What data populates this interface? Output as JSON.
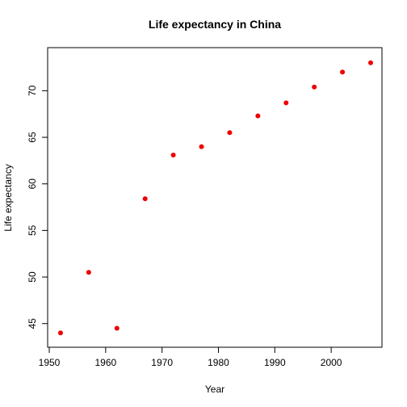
{
  "chart_data": {
    "type": "scatter",
    "title": "Life expectancy in China",
    "xlabel": "Year",
    "ylabel": "Life expectancy",
    "xlim": [
      1950,
      2007
    ],
    "ylim": [
      43.5,
      73.5
    ],
    "xticks": [
      1950,
      1960,
      1970,
      1980,
      1990,
      2000
    ],
    "yticks": [
      45,
      50,
      55,
      60,
      65,
      70
    ],
    "grid": false,
    "point_color": "#ee0000",
    "series": [
      {
        "x": [
          1952,
          1957,
          1962,
          1967,
          1972,
          1977,
          1982,
          1987,
          1992,
          1997,
          2002,
          2007
        ],
        "y": [
          44.0,
          50.5,
          44.5,
          58.4,
          63.1,
          64.0,
          65.5,
          67.3,
          68.7,
          70.4,
          72.0,
          73.0
        ]
      }
    ]
  }
}
